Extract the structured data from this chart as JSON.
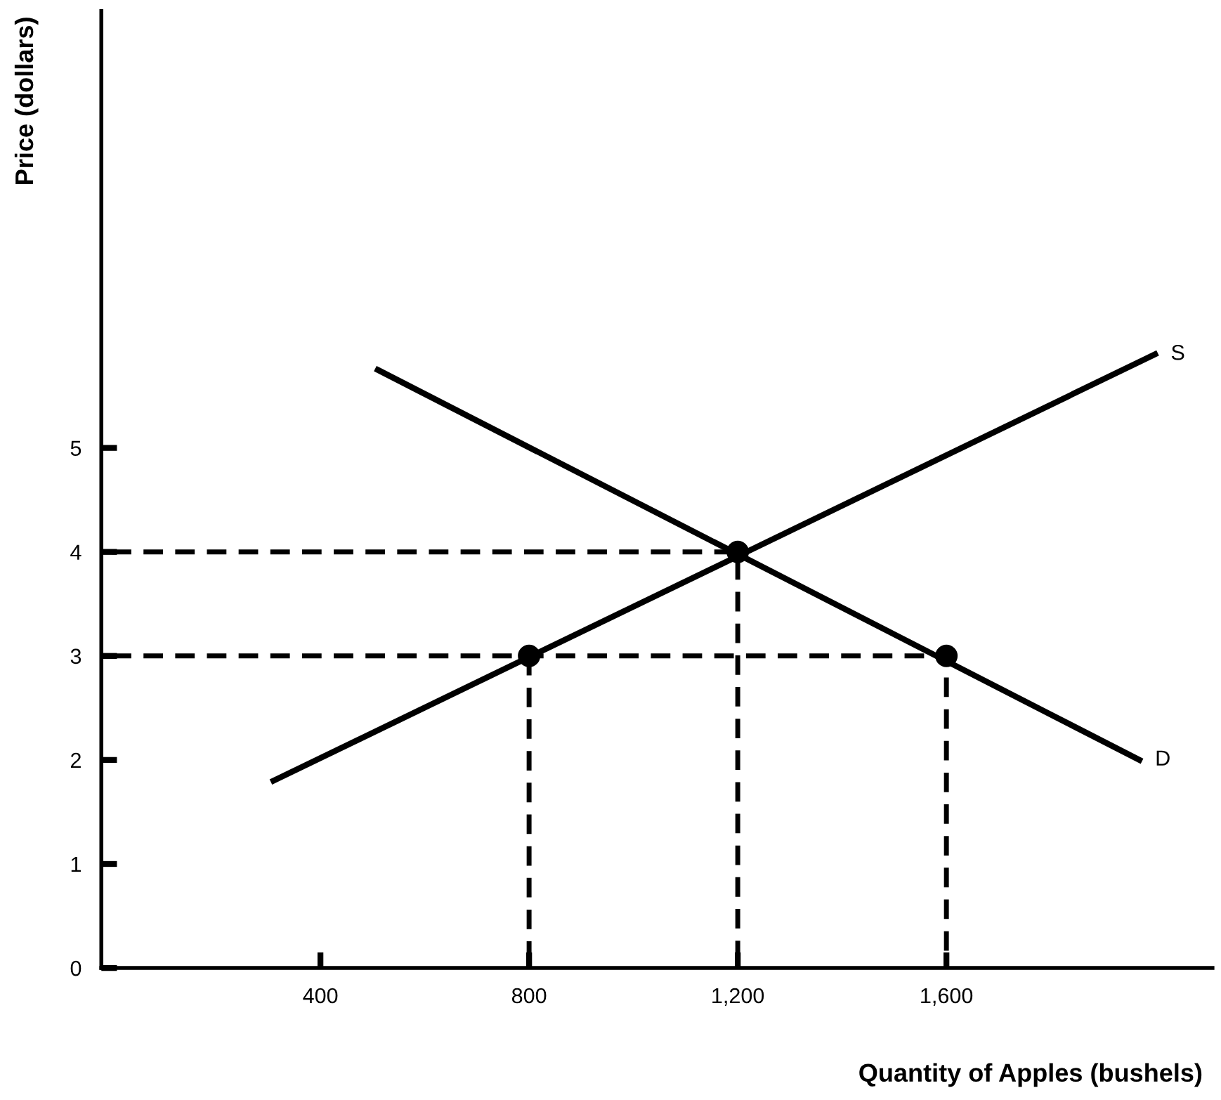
{
  "chart_data": {
    "type": "line",
    "xlabel": "Quantity of Apples (bushels)",
    "ylabel": "Price (dollars)",
    "xlim": [
      -20,
      2110
    ],
    "ylim": [
      0,
      9.2
    ],
    "xticks": [
      400,
      800,
      {
        "value": 1200,
        "label": "1,200"
      },
      {
        "value": 1600,
        "label": "1,600"
      }
    ],
    "yticks": [
      0,
      1,
      2,
      3,
      4,
      5
    ],
    "grid": false,
    "legend": false,
    "marker": "none",
    "series": [
      {
        "name": "S",
        "color": "#000000",
        "x": [
          310,
          2000
        ],
        "values": [
          1.8,
          5.9
        ]
      },
      {
        "name": "D",
        "color": "#000000",
        "x": [
          510,
          1970
        ],
        "values": [
          5.75,
          2.0
        ]
      },
      {
        "color": "#000000",
        "type": "line",
        "line_style": "dashed",
        "x": [
          0,
          1200,
          1200
        ],
        "values": [
          4,
          4,
          0
        ]
      },
      {
        "color": "#000000",
        "type": "line",
        "line_style": "dashed",
        "x": [
          0,
          1600,
          1600
        ],
        "values": [
          3,
          3,
          0
        ]
      },
      {
        "color": "#000000",
        "type": "line",
        "line_style": "dashed",
        "x": [
          800,
          800
        ],
        "values": [
          3,
          0
        ]
      },
      {
        "color": "#000000",
        "type": "scatter",
        "marker": "circle",
        "x": [
          800,
          1200,
          1600
        ],
        "values": [
          3,
          4,
          3
        ]
      }
    ]
  }
}
